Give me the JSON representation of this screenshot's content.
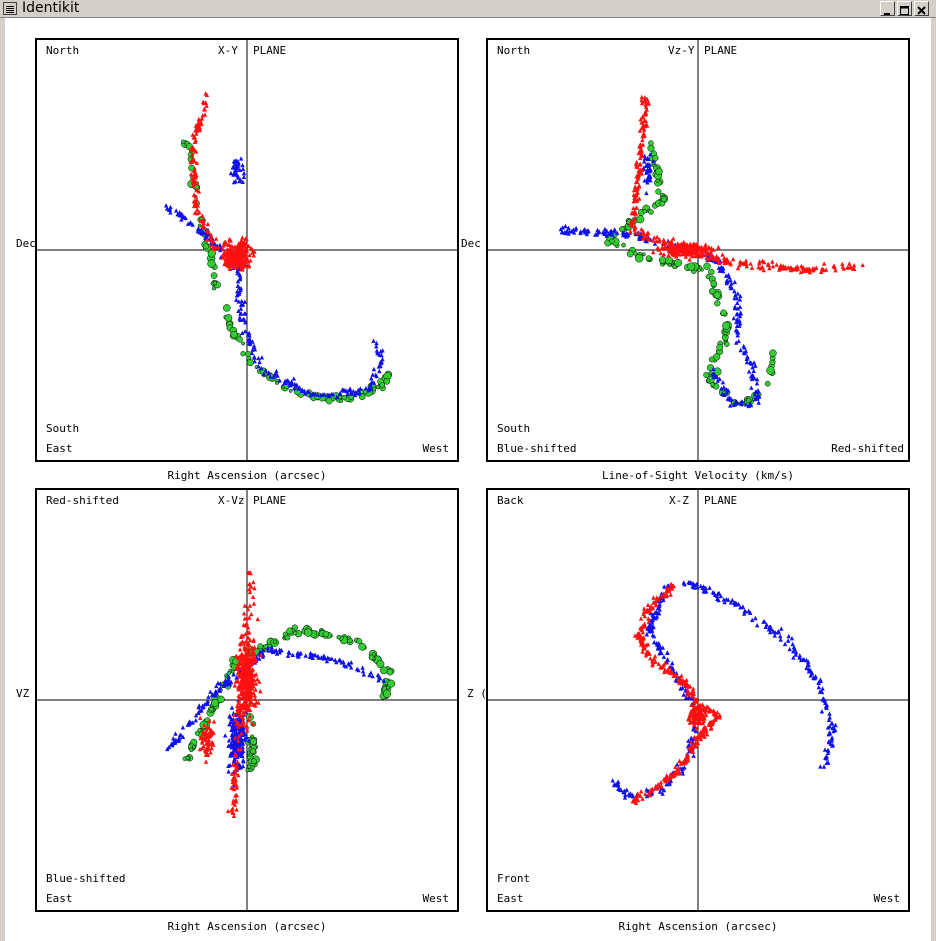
{
  "window": {
    "title": "Identikit"
  },
  "panels": [
    {
      "id": "xy",
      "corner_tl": "North",
      "plane_left": "X-Y",
      "plane_right": "PLANE",
      "corner_bl1": "South",
      "corner_bl2": "East",
      "corner_br": "West",
      "side_label": "Dec",
      "axis_label": "Right Ascension (arcsec)"
    },
    {
      "id": "vzy",
      "corner_tl": "North",
      "plane_left": "Vz-Y",
      "plane_right": "PLANE",
      "corner_bl1": "South",
      "corner_bl2": "Blue-shifted",
      "corner_br": "Red-shifted",
      "side_label": "Dec",
      "axis_label": "Line-of-Sight Velocity (km/s)"
    },
    {
      "id": "xvz",
      "corner_tl": "Red-shifted",
      "plane_left": "X-Vz",
      "plane_right": "PLANE",
      "corner_bl1": "Blue-shifted",
      "corner_bl2": "East",
      "corner_br": "West",
      "side_label": "VZ",
      "axis_label": "Right Ascension (arcsec)"
    },
    {
      "id": "xz",
      "corner_tl": "Back",
      "plane_left": "X-Z",
      "plane_right": "PLANE",
      "corner_bl1": "Front",
      "corner_bl2": "East",
      "corner_br": "West",
      "side_label": "Z (",
      "axis_label": "Right Ascension (arcsec)"
    }
  ],
  "colors": {
    "red": "#ff1010",
    "blue": "#1010ee",
    "green": "#33cc33"
  },
  "icons": {
    "menu": "window-menu-icon",
    "minimize": "minimize-icon",
    "maximize": "maximize-icon",
    "close": "close-icon"
  }
}
